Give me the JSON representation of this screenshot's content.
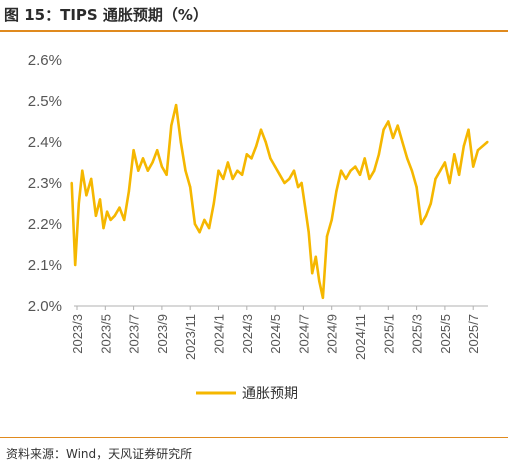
{
  "header": {
    "title": "图 15：TIPS 通胀预期（%）"
  },
  "footer": {
    "source": "资料来源：Wind，天风证券研究所"
  },
  "colors": {
    "line": "#F5B700",
    "accent_rule": "#E08A1E",
    "axis": "#B0B0B0",
    "text": "#555555"
  },
  "chart_data": {
    "type": "line",
    "title": "",
    "xlabel": "",
    "ylabel": "",
    "y_unit": "%",
    "ylim": [
      2.0,
      2.6
    ],
    "y_ticks": [
      "2.0%",
      "2.1%",
      "2.2%",
      "2.3%",
      "2.4%",
      "2.5%",
      "2.6%"
    ],
    "x_ticks": [
      "2023/3",
      "2023/5",
      "2023/7",
      "2023/9",
      "2023/11",
      "2024/1",
      "2024/3",
      "2024/5",
      "2024/7",
      "2024/9",
      "2024/11",
      "2025/1",
      "2025/3",
      "2025/5",
      "2025/7"
    ],
    "grid": false,
    "legend": "bottom-center",
    "series": [
      {
        "name": "通胀预期",
        "x": [
          "2023/3",
          "2023/3",
          "2023/3",
          "2023/3",
          "2023/4",
          "2023/4",
          "2023/4",
          "2023/5",
          "2023/5",
          "2023/5",
          "2023/5",
          "2023/6",
          "2023/6",
          "2023/6",
          "2023/7",
          "2023/7",
          "2023/7",
          "2023/8",
          "2023/8",
          "2023/8",
          "2023/9",
          "2023/9",
          "2023/9",
          "2023/10",
          "2023/10",
          "2023/10",
          "2023/11",
          "2023/11",
          "2023/11",
          "2023/12",
          "2023/12",
          "2023/12",
          "2024/1",
          "2024/1",
          "2024/1",
          "2024/2",
          "2024/2",
          "2024/2",
          "2024/3",
          "2024/3",
          "2024/3",
          "2024/4",
          "2024/4",
          "2024/4",
          "2024/5",
          "2024/5",
          "2024/5",
          "2024/6",
          "2024/6",
          "2024/6",
          "2024/7",
          "2024/7",
          "2024/7",
          "2024/7",
          "2024/8",
          "2024/8",
          "2024/8",
          "2024/8",
          "2024/9",
          "2024/9",
          "2024/9",
          "2024/10",
          "2024/10",
          "2024/10",
          "2024/11",
          "2024/11",
          "2024/11",
          "2024/12",
          "2024/12",
          "2024/12",
          "2025/1",
          "2025/1",
          "2025/1",
          "2025/2",
          "2025/2",
          "2025/2",
          "2025/3",
          "2025/3",
          "2025/3",
          "2025/4",
          "2025/4",
          "2025/4",
          "2025/5",
          "2025/5",
          "2025/5",
          "2025/6",
          "2025/6",
          "2025/6",
          "2025/7",
          "2025/7",
          "2025/7",
          "2025/8"
        ],
        "values": [
          2.3,
          2.1,
          2.25,
          2.33,
          2.27,
          2.31,
          2.22,
          2.26,
          2.19,
          2.23,
          2.21,
          2.22,
          2.24,
          2.21,
          2.28,
          2.38,
          2.33,
          2.36,
          2.33,
          2.35,
          2.38,
          2.34,
          2.32,
          2.44,
          2.49,
          2.4,
          2.33,
          2.29,
          2.2,
          2.18,
          2.21,
          2.19,
          2.25,
          2.33,
          2.31,
          2.35,
          2.31,
          2.33,
          2.32,
          2.37,
          2.36,
          2.39,
          2.43,
          2.4,
          2.36,
          2.34,
          2.32,
          2.3,
          2.31,
          2.33,
          2.29,
          2.3,
          2.24,
          2.18,
          2.08,
          2.12,
          2.06,
          2.02,
          2.17,
          2.21,
          2.28,
          2.33,
          2.31,
          2.33,
          2.34,
          2.32,
          2.36,
          2.31,
          2.33,
          2.37,
          2.43,
          2.45,
          2.41,
          2.44,
          2.4,
          2.36,
          2.33,
          2.29,
          2.2,
          2.22,
          2.25,
          2.31,
          2.33,
          2.35,
          2.3,
          2.37,
          2.32,
          2.39,
          2.43,
          2.34,
          2.38,
          2.4
        ]
      }
    ]
  }
}
